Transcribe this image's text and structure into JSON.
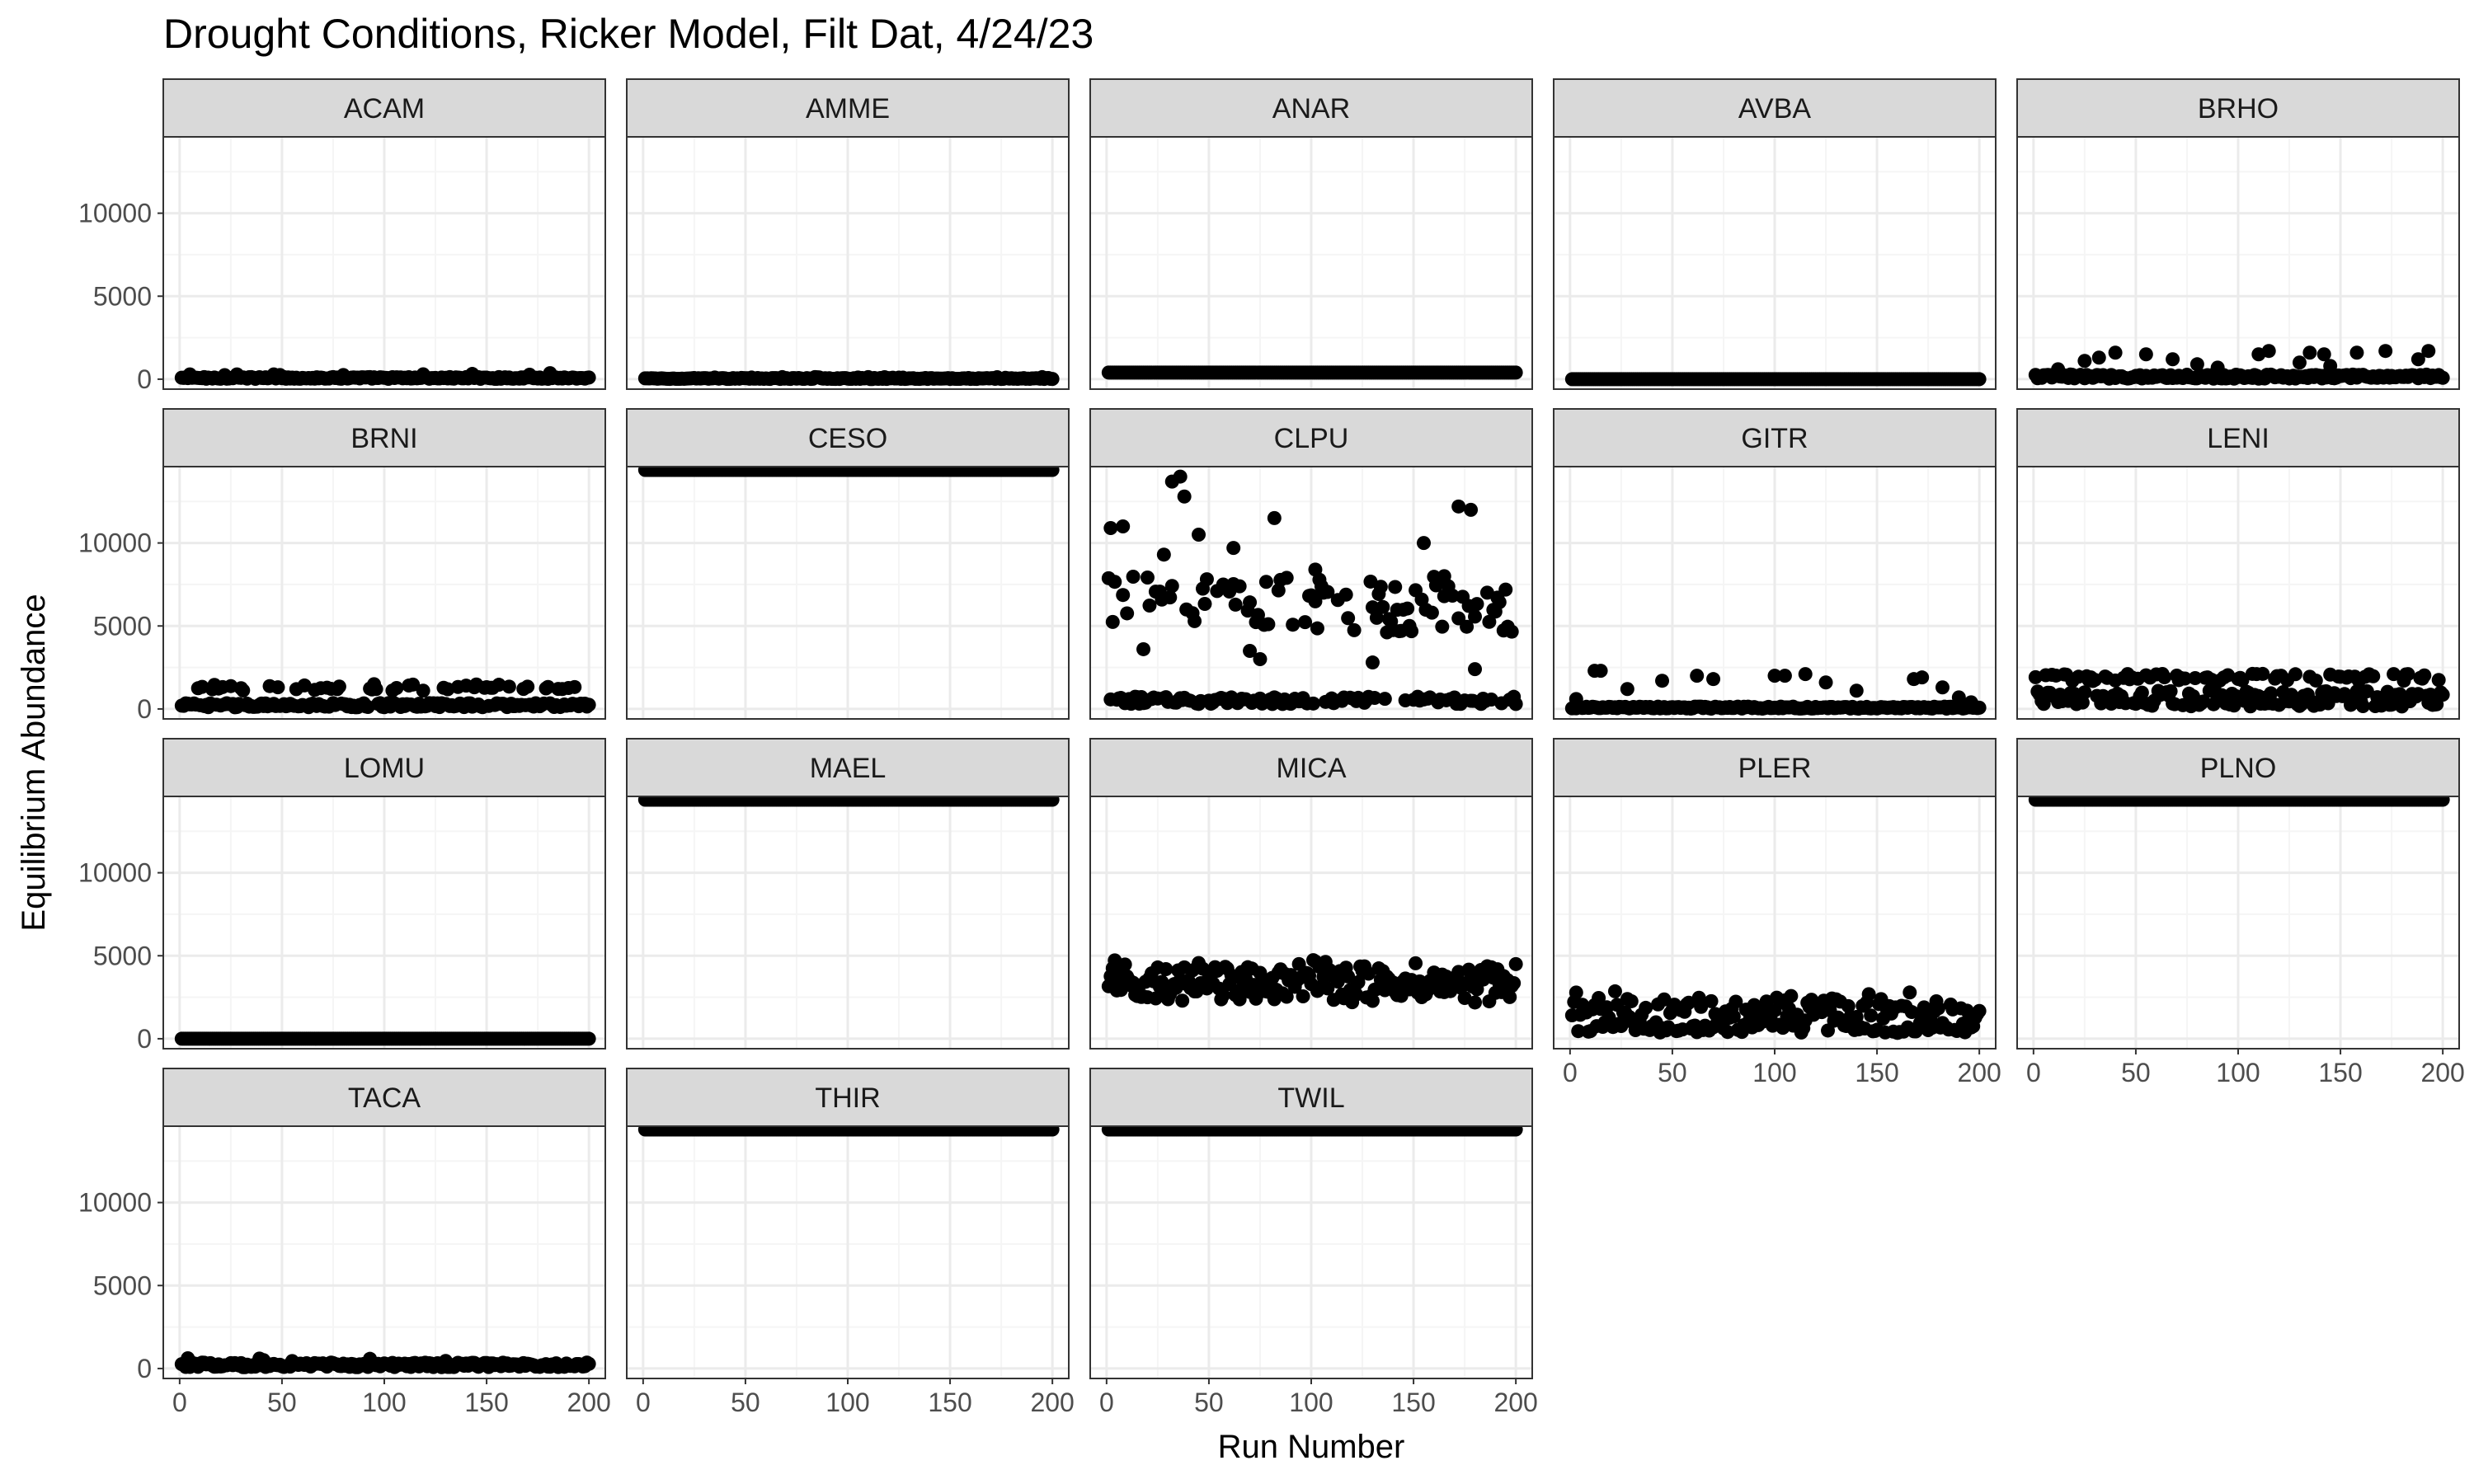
{
  "chart_data": {
    "type": "scatter",
    "title": "Drought Conditions, Ricker Model, Filt Dat, 4/24/23",
    "xlabel": "Run Number",
    "ylabel": "Equilibrium Abundance",
    "xlim": [
      -8,
      208
    ],
    "ylim": [
      -600,
      14600
    ],
    "xticks": [
      0,
      50,
      100,
      150,
      200
    ],
    "yticks": [
      0,
      5000,
      10000
    ],
    "grid": true,
    "facets": [
      {
        "name": "ACAM",
        "pattern": "low",
        "base": 20,
        "spread": 110,
        "spike": 350
      },
      {
        "name": "AMME",
        "pattern": "low",
        "base": 10,
        "spread": 60,
        "spike": 120
      },
      {
        "name": "ANAR",
        "pattern": "line",
        "base": 400,
        "spread": 0
      },
      {
        "name": "AVBA",
        "pattern": "line",
        "base": 0,
        "spread": 0
      },
      {
        "name": "BRHO",
        "pattern": "spiky",
        "base": 30,
        "spread": 250,
        "spikes": [
          [
            12,
            600
          ],
          [
            25,
            1100
          ],
          [
            32,
            1300
          ],
          [
            40,
            1600
          ],
          [
            55,
            1500
          ],
          [
            68,
            1200
          ],
          [
            80,
            900
          ],
          [
            90,
            700
          ],
          [
            110,
            1500
          ],
          [
            115,
            1700
          ],
          [
            130,
            1000
          ],
          [
            135,
            1600
          ],
          [
            142,
            1500
          ],
          [
            145,
            800
          ],
          [
            158,
            1600
          ],
          [
            172,
            1700
          ],
          [
            188,
            1200
          ],
          [
            193,
            1700
          ]
        ]
      },
      {
        "name": "BRNI",
        "pattern": "band2",
        "base": 100,
        "spread": 250,
        "upperBase": 1300,
        "upperSpread": 400,
        "upperFrac": 0.25
      },
      {
        "name": "CESO",
        "pattern": "line",
        "base": 14400,
        "spread": 0
      },
      {
        "name": "CLPU",
        "pattern": "clpu",
        "base": 300,
        "spread": 450,
        "upperBase": 6300,
        "upperSpread": 1700,
        "upperFrac": 0.5,
        "spikes": [
          [
            2,
            10900
          ],
          [
            8,
            11000
          ],
          [
            18,
            3600
          ],
          [
            28,
            9300
          ],
          [
            32,
            13700
          ],
          [
            36,
            14000
          ],
          [
            38,
            12800
          ],
          [
            45,
            10500
          ],
          [
            62,
            9700
          ],
          [
            70,
            3500
          ],
          [
            75,
            3000
          ],
          [
            82,
            11500
          ],
          [
            102,
            8400
          ],
          [
            130,
            2800
          ],
          [
            172,
            12200
          ],
          [
            178,
            12000
          ],
          [
            155,
            10000
          ],
          [
            165,
            8000
          ],
          [
            180,
            2400
          ]
        ]
      },
      {
        "name": "GITR",
        "pattern": "gitr",
        "base": 20,
        "spread": 120,
        "spikes": [
          [
            3,
            600
          ],
          [
            12,
            2300
          ],
          [
            15,
            2300
          ],
          [
            28,
            1200
          ],
          [
            45,
            1700
          ],
          [
            62,
            2000
          ],
          [
            70,
            1800
          ],
          [
            100,
            2000
          ],
          [
            105,
            2000
          ],
          [
            115,
            2100
          ],
          [
            125,
            1600
          ],
          [
            140,
            1100
          ],
          [
            168,
            1800
          ],
          [
            172,
            1900
          ],
          [
            182,
            1300
          ],
          [
            190,
            700
          ],
          [
            196,
            400
          ]
        ]
      },
      {
        "name": "LENI",
        "pattern": "band3",
        "base": 150,
        "spread": 350,
        "upperBase": 1900,
        "upperSpread": 450,
        "upperFrac": 0.55
      },
      {
        "name": "LOMU",
        "pattern": "line",
        "base": 0,
        "spread": 0
      },
      {
        "name": "MAEL",
        "pattern": "line",
        "base": 14400,
        "spread": 0
      },
      {
        "name": "MICA",
        "pattern": "mica",
        "base": 3400,
        "spread": 1400
      },
      {
        "name": "PLER",
        "pattern": "pler",
        "base": 1600,
        "spread": 1300
      },
      {
        "name": "PLNO",
        "pattern": "line",
        "base": 14400,
        "spread": 0
      },
      {
        "name": "TACA",
        "pattern": "low",
        "base": 80,
        "spread": 280,
        "spike": 550
      },
      {
        "name": "THIR",
        "pattern": "line",
        "base": 14400,
        "spread": 0
      },
      {
        "name": "TWIL",
        "pattern": "line",
        "base": 14400,
        "spread": 0
      }
    ],
    "point_color": "#000000",
    "panel_border_color": "#333333",
    "strip_fill": "#d9d9d9",
    "grid_major_color": "#ebebeb",
    "grid_minor_color": "#f5f5f5"
  }
}
